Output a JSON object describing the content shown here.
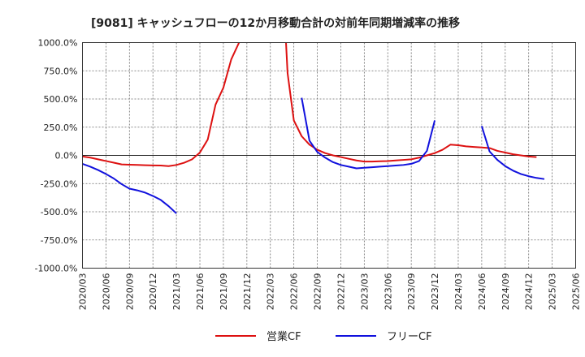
{
  "chart_data": {
    "type": "line",
    "title": "[9081]  キャッシュフローの12か月移動合計の対前年同期増減率の推移",
    "xlabel": "",
    "ylabel": "",
    "ylim": [
      -1000,
      1000
    ],
    "y_ticks": [
      "1000.0%",
      "750.0%",
      "500.0%",
      "250.0%",
      "0.0%",
      "-250.0%",
      "-500.0%",
      "-750.0%",
      "-1000.0%"
    ],
    "y_tick_values": [
      1000,
      750,
      500,
      250,
      0,
      -250,
      -500,
      -750,
      -1000
    ],
    "x_ticks": [
      "2020/03",
      "2020/06",
      "2020/09",
      "2020/12",
      "2021/03",
      "2021/06",
      "2021/09",
      "2021/12",
      "2022/03",
      "2022/06",
      "2022/09",
      "2022/12",
      "2023/03",
      "2023/06",
      "2023/09",
      "2023/12",
      "2024/03",
      "2024/06",
      "2024/09",
      "2024/12",
      "2025/03",
      "2025/06"
    ],
    "grid": true,
    "legend_position": "bottom",
    "series": [
      {
        "name": "営業CF",
        "color": "#dd1111",
        "points": [
          [
            0,
            -10
          ],
          [
            1,
            -20
          ],
          [
            2,
            -35
          ],
          [
            3,
            -50
          ],
          [
            4,
            -65
          ],
          [
            5,
            -80
          ],
          [
            6,
            -83
          ],
          [
            7,
            -85
          ],
          [
            8,
            -87
          ],
          [
            9,
            -89
          ],
          [
            10,
            -90
          ],
          [
            11,
            -95
          ],
          [
            12,
            -85
          ],
          [
            13,
            -65
          ],
          [
            14,
            -35
          ],
          [
            15,
            25
          ],
          [
            16,
            140
          ],
          [
            17,
            450
          ],
          [
            18,
            600
          ],
          [
            19,
            850
          ],
          [
            20,
            1050
          ],
          null,
          [
            26,
            1050
          ],
          [
            26.2,
            730
          ],
          [
            27,
            310
          ],
          [
            28,
            170
          ],
          [
            29,
            95
          ],
          [
            30,
            50
          ],
          [
            31,
            20
          ],
          [
            32,
            0
          ],
          [
            33,
            -15
          ],
          [
            34,
            -30
          ],
          [
            35,
            -45
          ],
          [
            36,
            -55
          ],
          [
            37,
            -55
          ],
          [
            38,
            -52
          ],
          [
            39,
            -50
          ],
          [
            40,
            -45
          ],
          [
            41,
            -40
          ],
          [
            42,
            -35
          ],
          [
            43,
            -20
          ],
          [
            44,
            0
          ],
          [
            45,
            20
          ],
          [
            46,
            50
          ],
          [
            47,
            95
          ],
          [
            48,
            90
          ],
          [
            49,
            80
          ],
          [
            50,
            75
          ],
          [
            51,
            70
          ],
          [
            52,
            65
          ],
          [
            53,
            40
          ],
          [
            54,
            25
          ],
          [
            55,
            10
          ],
          [
            56,
            0
          ],
          [
            57,
            -10
          ],
          [
            58,
            -15
          ]
        ]
      },
      {
        "name": "フリーCF",
        "color": "#1111dd",
        "points": [
          [
            0,
            -75
          ],
          [
            1,
            -100
          ],
          [
            2,
            -130
          ],
          [
            3,
            -165
          ],
          [
            4,
            -205
          ],
          [
            5,
            -255
          ],
          [
            6,
            -295
          ],
          [
            7,
            -310
          ],
          [
            8,
            -330
          ],
          [
            9,
            -360
          ],
          [
            10,
            -395
          ],
          [
            11,
            -450
          ],
          [
            12,
            -515
          ],
          null,
          [
            28,
            510
          ],
          [
            29,
            130
          ],
          [
            30,
            30
          ],
          [
            31,
            -20
          ],
          [
            32,
            -60
          ],
          [
            33,
            -85
          ],
          [
            34,
            -100
          ],
          [
            35,
            -115
          ],
          [
            36,
            -110
          ],
          [
            37,
            -105
          ],
          [
            38,
            -100
          ],
          [
            39,
            -95
          ],
          [
            40,
            -90
          ],
          [
            41,
            -85
          ],
          [
            42,
            -75
          ],
          [
            43,
            -50
          ],
          [
            44,
            40
          ],
          [
            45,
            310
          ],
          null,
          [
            51,
            260
          ],
          [
            52,
            35
          ],
          [
            53,
            -40
          ],
          [
            54,
            -95
          ],
          [
            55,
            -135
          ],
          [
            56,
            -165
          ],
          [
            57,
            -185
          ],
          [
            58,
            -200
          ],
          [
            59,
            -210
          ]
        ]
      }
    ]
  }
}
